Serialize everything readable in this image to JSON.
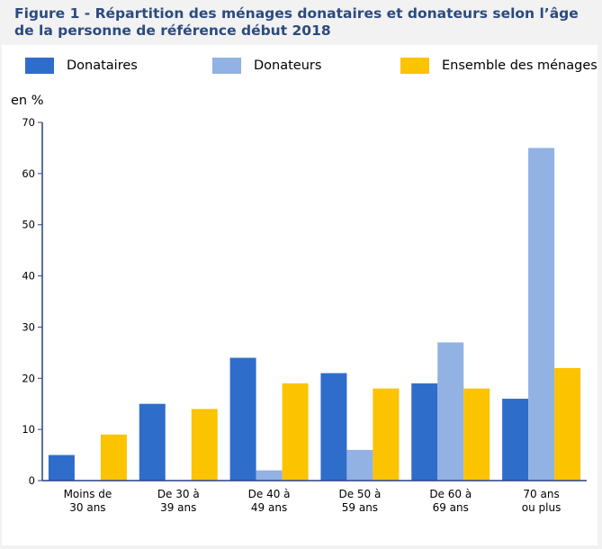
{
  "figure": {
    "title": "Figure 1 - Répartition des ménages donataires et donateurs selon l’âge de la personne de référence début 2018"
  },
  "chart_data": {
    "type": "bar",
    "title": "Figure 1 - Répartition des ménages donataires et donateurs selon l’âge de la personne de référence début 2018",
    "ylabel": "en %",
    "xlabel": "",
    "ylim": [
      0,
      70
    ],
    "yticks": [
      0,
      10,
      20,
      30,
      40,
      50,
      60,
      70
    ],
    "grid": false,
    "legend_position": "top",
    "categories": [
      [
        "Moins de",
        "30 ans"
      ],
      [
        "De 30 à",
        "39 ans"
      ],
      [
        "De 40 à",
        "49 ans"
      ],
      [
        "De 50 à",
        "59 ans"
      ],
      [
        "De 60 à",
        "69 ans"
      ],
      [
        "70 ans",
        "ou plus"
      ]
    ],
    "series": [
      {
        "name": "Donataires",
        "color": "#2f6dcb",
        "values": [
          5,
          15,
          24,
          21,
          19,
          16
        ]
      },
      {
        "name": "Donateurs",
        "color": "#91b2e3",
        "values": [
          0,
          0,
          2,
          6,
          27,
          65
        ]
      },
      {
        "name": "Ensemble des ménages",
        "color": "#fcc300",
        "values": [
          9,
          14,
          19,
          18,
          18,
          22
        ]
      }
    ]
  }
}
